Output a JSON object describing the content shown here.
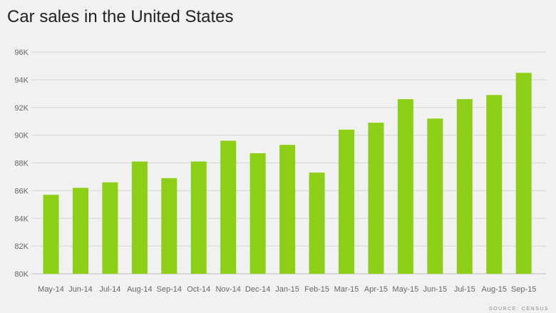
{
  "title": "Car sales in the United States",
  "source": "SOURCE: CENSUS",
  "colors": {
    "bar": "#8ccf16",
    "grid": "#d4d4d4",
    "axis_text": "#666666",
    "background": "#f1f1f1"
  },
  "chart_data": {
    "type": "bar",
    "categories": [
      "May-14",
      "Jun-14",
      "Jul-14",
      "Aug-14",
      "Sep-14",
      "Oct-14",
      "Nov-14",
      "Dec-14",
      "Jan-15",
      "Feb-15",
      "Mar-15",
      "Apr-15",
      "May-15",
      "Jun-15",
      "Jul-15",
      "Aug-15",
      "Sep-15"
    ],
    "values": [
      85700,
      86200,
      86600,
      88100,
      86900,
      88100,
      89600,
      88700,
      89300,
      87300,
      90400,
      90900,
      92600,
      91200,
      92600,
      92900,
      94500
    ],
    "ylim": [
      80000,
      96000
    ],
    "yticks": [
      80000,
      82000,
      84000,
      86000,
      88000,
      90000,
      92000,
      94000,
      96000
    ],
    "ytick_labels": [
      "80K",
      "82K",
      "84K",
      "86K",
      "88K",
      "90K",
      "92K",
      "94K",
      "96K"
    ],
    "grid": true,
    "legend": "none"
  }
}
